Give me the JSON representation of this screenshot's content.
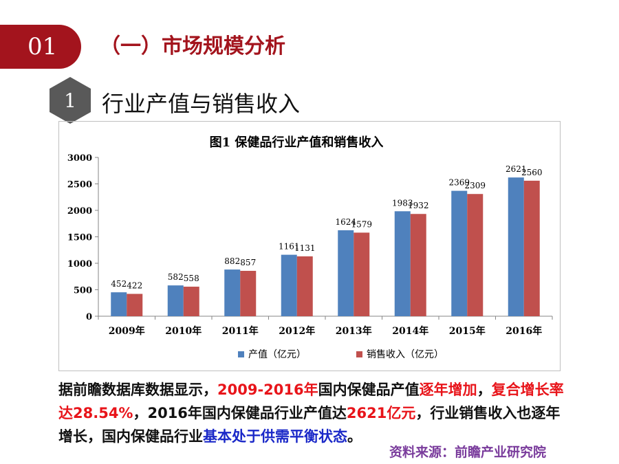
{
  "header": {
    "number": "01",
    "section_title": "（一）市场规模分析"
  },
  "subsection": {
    "number": "1",
    "title": "行业产值与销售收入"
  },
  "colors": {
    "brand_red": "#a3141d",
    "hex_gray": "#595959",
    "series_blue": "#4f81bd",
    "series_red": "#c0504d"
  },
  "chart_data": {
    "type": "bar",
    "title": "图1 保健品行业产值和销售收入",
    "categories": [
      "2009年",
      "2010年",
      "2011年",
      "2012年",
      "2013年",
      "2014年",
      "2015年",
      "2016年"
    ],
    "series": [
      {
        "name": "产值（亿元）",
        "values": [
          452,
          582,
          882,
          1161,
          1624,
          1983,
          2369,
          2621
        ],
        "color": "#4f81bd"
      },
      {
        "name": "销售收入（亿元）",
        "values": [
          422,
          558,
          857,
          1131,
          1579,
          1932,
          2309,
          2560
        ],
        "color": "#c0504d"
      }
    ],
    "ylim": [
      0,
      3000
    ],
    "yticks": [
      "0",
      "500",
      "1000",
      "1500",
      "2000",
      "2500",
      "3000"
    ],
    "xlabel": "",
    "ylabel": "",
    "grid": false,
    "legend_position": "bottom"
  },
  "paragraph": {
    "s1": "据前瞻数据库数据显示，",
    "s2": "2009-2016年",
    "s3": "国内保健品产值",
    "s4": "逐年增加",
    "s5": "，",
    "s6": "复合增长率达28.54%",
    "s7": "，2016年国内保健品行业产值达",
    "s8": "2621亿元",
    "s9": "，行业销售收入也逐年增长，国内保健品行业",
    "s10": "基本处于供需平衡状态",
    "s11": "。"
  },
  "source": "资料来源：前瞻产业研究院"
}
